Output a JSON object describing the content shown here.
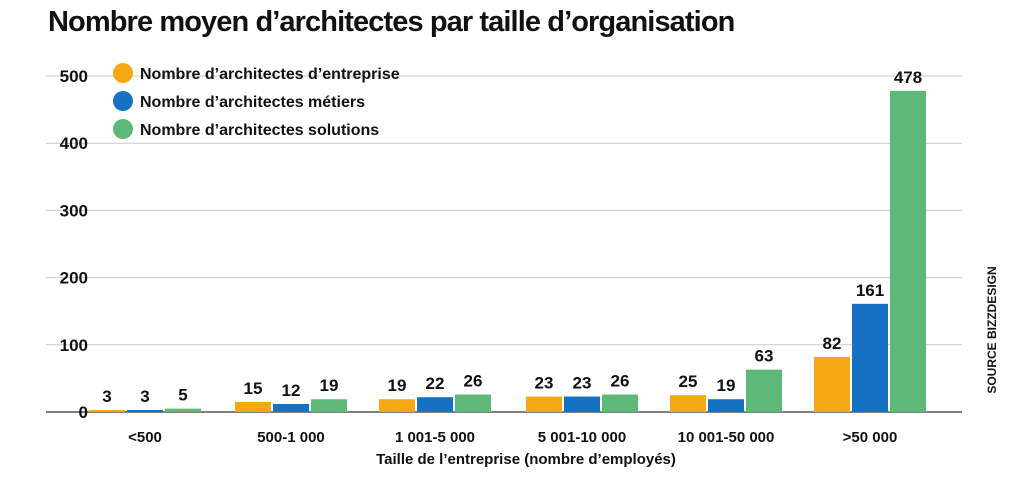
{
  "title": "Nombre moyen d’architectes par taille d’organisation",
  "source": "SOURCE BIZZDESIGN",
  "chart_data": {
    "type": "bar",
    "title": "Nombre moyen d’architectes par taille d’organisation",
    "xlabel": "Taille de l’entreprise (nombre d’employés)",
    "ylabel": "",
    "categories": [
      "<500",
      "500-1 000",
      "1 001-5 000",
      "5 001-10 000",
      "10 001-50 000",
      ">50 000"
    ],
    "series": [
      {
        "name": "Nombre d’architectes d’entreprise",
        "color": "#f5a814",
        "values": [
          3,
          15,
          19,
          23,
          25,
          82
        ]
      },
      {
        "name": "Nombre d’architectes métiers",
        "color": "#1572c2",
        "values": [
          3,
          12,
          22,
          23,
          19,
          161
        ]
      },
      {
        "name": "Nombre d’architectes solutions",
        "color": "#5eb878",
        "values": [
          5,
          19,
          26,
          26,
          63,
          478
        ]
      }
    ],
    "yticks": [
      "0",
      "100",
      "200",
      "300",
      "400",
      "500"
    ],
    "ylim": [
      0,
      500
    ],
    "grid": true,
    "legend": "top-left"
  }
}
